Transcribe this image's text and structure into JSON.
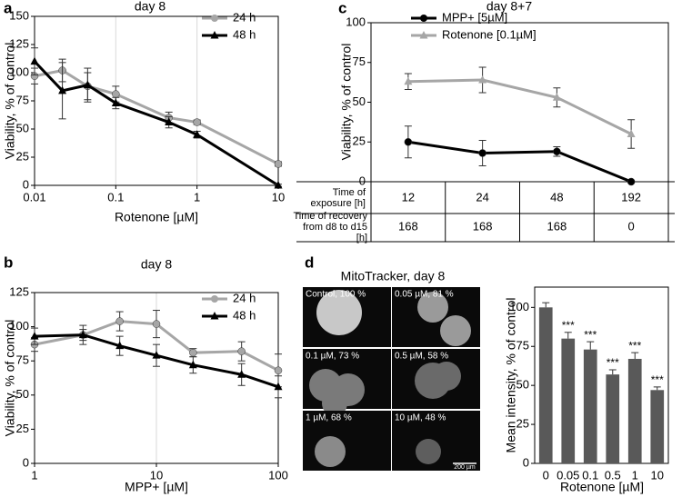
{
  "chart_data": [
    {
      "type": "line",
      "panel": "a",
      "title": "day 8",
      "x_label": "Rotenone [µM]",
      "y_label": "Viability, % of control",
      "xscale": "log",
      "xlim": [
        0.01,
        10
      ],
      "xticks": [
        0.01,
        0.1,
        1,
        10
      ],
      "ylim": [
        0,
        150
      ],
      "yticks": [
        0,
        25,
        50,
        75,
        100,
        125,
        150
      ],
      "grid": true,
      "x": [
        0.01,
        0.022,
        0.045,
        0.1,
        0.45,
        1,
        10
      ],
      "series": [
        {
          "name": "24 h",
          "color": "#a6a6a6",
          "marker": "circle",
          "values": [
            97,
            102,
            88,
            81,
            60,
            56,
            19
          ],
          "errors": [
            7,
            10,
            12,
            7,
            5,
            2,
            2
          ]
        },
        {
          "name": "48 h",
          "color": "#000000",
          "marker": "triangle",
          "values": [
            110,
            84,
            89,
            73,
            56,
            45,
            0
          ],
          "errors": [
            12,
            25,
            15,
            5,
            5,
            3,
            1
          ]
        }
      ]
    },
    {
      "type": "line",
      "panel": "b",
      "title": "day 8",
      "x_label": "MPP+ [µM]",
      "y_label": "Viability, % of control",
      "xscale": "log",
      "xlim": [
        1,
        100
      ],
      "xticks": [
        1,
        10,
        100
      ],
      "ylim": [
        0,
        125
      ],
      "yticks": [
        0,
        25,
        50,
        75,
        100,
        125
      ],
      "grid": true,
      "x": [
        1,
        2.5,
        5,
        10,
        20,
        50,
        100
      ],
      "series": [
        {
          "name": "24 h",
          "color": "#a6a6a6",
          "marker": "circle",
          "values": [
            87,
            94,
            104,
            102,
            81,
            82,
            68
          ],
          "errors": [
            5,
            7,
            7,
            10,
            3,
            7,
            12
          ]
        },
        {
          "name": "48 h",
          "color": "#000000",
          "marker": "triangle",
          "values": [
            93,
            94,
            86,
            79,
            72,
            65,
            56
          ],
          "errors": [
            6,
            4,
            7,
            8,
            6,
            8,
            8
          ]
        }
      ]
    },
    {
      "type": "line",
      "panel": "c",
      "title": "day 8+7",
      "y_label": "Viability, % of control",
      "ylim": [
        0,
        100
      ],
      "yticks": [
        0,
        25,
        50,
        75,
        100
      ],
      "categories": [
        12,
        24,
        48,
        192
      ],
      "exposure_label": "Time of exposure [h]",
      "recovery_label": "Time of recovery from d8 to d15 [h]",
      "recovery": [
        168,
        168,
        168,
        0
      ],
      "series": [
        {
          "name": "MPP+ [5µM]",
          "color": "#000000",
          "marker": "circle",
          "values": [
            25,
            18,
            19,
            0
          ],
          "errors": [
            10,
            8,
            3,
            0
          ]
        },
        {
          "name": "Rotenone [0.1µM]",
          "color": "#a6a6a6",
          "marker": "triangle",
          "values": [
            63,
            64,
            53,
            30
          ],
          "errors": [
            5,
            8,
            6,
            9
          ]
        }
      ]
    },
    {
      "type": "bar",
      "panel": "d",
      "image_title": "MitoTracker, day 8",
      "image_labels": [
        "Control, 100 %",
        "0.05 µM, 81 %",
        "0.1 µM, 73 %",
        "0.5 µM, 58 %",
        "1 µM, 68 %",
        "10 µM, 48 %"
      ],
      "scale_bar": "200 µm",
      "x_label": "Rotenone [µM]",
      "y_label": "Mean intensity, % of control",
      "ylim": [
        0,
        113
      ],
      "yticks": [
        0,
        25,
        50,
        75,
        100
      ],
      "categories": [
        "0",
        "0.05",
        "0.1",
        "0.5",
        "1",
        "10"
      ],
      "values": [
        100,
        80,
        73,
        57,
        67,
        47
      ],
      "errors": [
        3,
        4,
        5,
        3,
        4,
        2
      ],
      "annotations": [
        null,
        "***",
        "***",
        "***",
        "***",
        "***"
      ],
      "color": "#595959"
    }
  ]
}
